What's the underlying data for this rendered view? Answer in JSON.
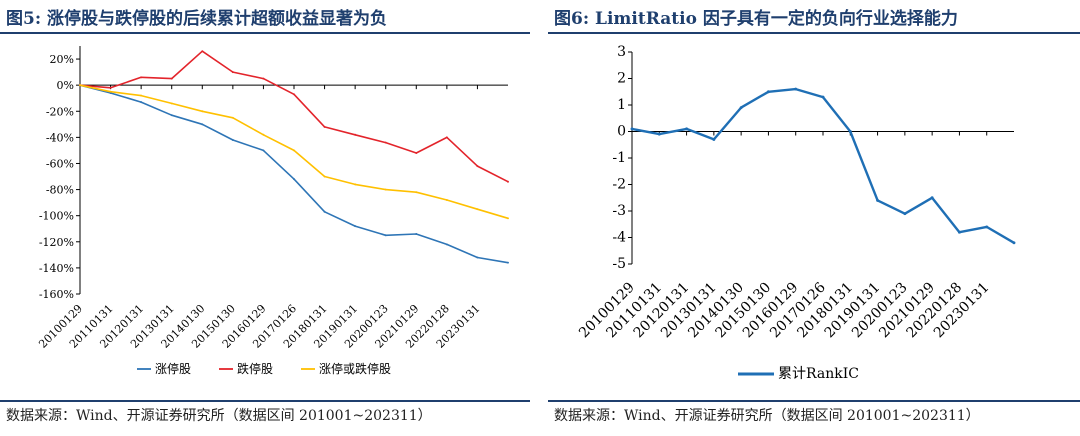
{
  "left": {
    "title": "图5:  涨停股与跌停股的后续累计超额收益显著为负",
    "source": "数据来源：Wind、开源证券研究所（数据区间 201001~202311）"
  },
  "right": {
    "title": "图6:  LimitRatio 因子具有一定的负向行业选择能力",
    "source": "数据来源：Wind、开源证券研究所（数据区间 201001~202311）"
  },
  "chart_data": [
    {
      "type": "line",
      "x": [
        "20100129",
        "20110131",
        "20120131",
        "20130131",
        "20140130",
        "20150130",
        "20160129",
        "20170126",
        "20180131",
        "20190131",
        "20200123",
        "20210129",
        "20220128",
        "20230131",
        "20231130"
      ],
      "xticks": [
        "20100129",
        "20110131",
        "20120131",
        "20130131",
        "20140130",
        "20150130",
        "20160129",
        "20170126",
        "20180131",
        "20190131",
        "20200123",
        "20210129",
        "20220128",
        "20230131"
      ],
      "yticks": [
        "20%",
        "0%",
        "-20%",
        "-40%",
        "-60%",
        "-80%",
        "-100%",
        "-120%",
        "-140%",
        "-160%"
      ],
      "ylim": [
        -160,
        30
      ],
      "yformat": "percent",
      "series": [
        {
          "name": "涨停股",
          "color": "#2e75b6",
          "values": [
            0,
            -6,
            -13,
            -23,
            -30,
            -42,
            -50,
            -72,
            -97,
            -108,
            -115,
            -114,
            -122,
            -132,
            -136
          ]
        },
        {
          "name": "跌停股",
          "color": "#e3242b",
          "values": [
            0,
            -2,
            6,
            5,
            26,
            10,
            5,
            -7,
            -32,
            -38,
            -44,
            -52,
            -40,
            -62,
            -74
          ]
        },
        {
          "name": "涨停或跌停股",
          "color": "#ffc000",
          "values": [
            0,
            -5,
            -8,
            -14,
            -20,
            -25,
            -38,
            -50,
            -70,
            -76,
            -80,
            -82,
            -88,
            -95,
            -102
          ]
        }
      ]
    },
    {
      "type": "line",
      "x": [
        "20100129",
        "20110131",
        "20120131",
        "20130131",
        "20140130",
        "20150130",
        "20160129",
        "20170126",
        "20180131",
        "20190131",
        "20200123",
        "20210129",
        "20220128",
        "20230131",
        "20231130"
      ],
      "xticks": [
        "20100129",
        "20110131",
        "20120131",
        "20130131",
        "20140130",
        "20150130",
        "20160129",
        "20170126",
        "20180131",
        "20190131",
        "20200123",
        "20210129",
        "20220128",
        "20230131"
      ],
      "yticks": [
        "3",
        "2",
        "1",
        "0",
        "-1",
        "-2",
        "-3",
        "-4",
        "-5"
      ],
      "ylim": [
        -5,
        3
      ],
      "series": [
        {
          "name": "累计RankIC",
          "color": "#1f6fb5",
          "values": [
            0.1,
            -0.1,
            0.1,
            -0.3,
            0.9,
            1.5,
            1.6,
            1.3,
            0.0,
            -2.6,
            -3.1,
            -2.5,
            -3.8,
            -3.6,
            -4.2
          ]
        }
      ]
    }
  ]
}
